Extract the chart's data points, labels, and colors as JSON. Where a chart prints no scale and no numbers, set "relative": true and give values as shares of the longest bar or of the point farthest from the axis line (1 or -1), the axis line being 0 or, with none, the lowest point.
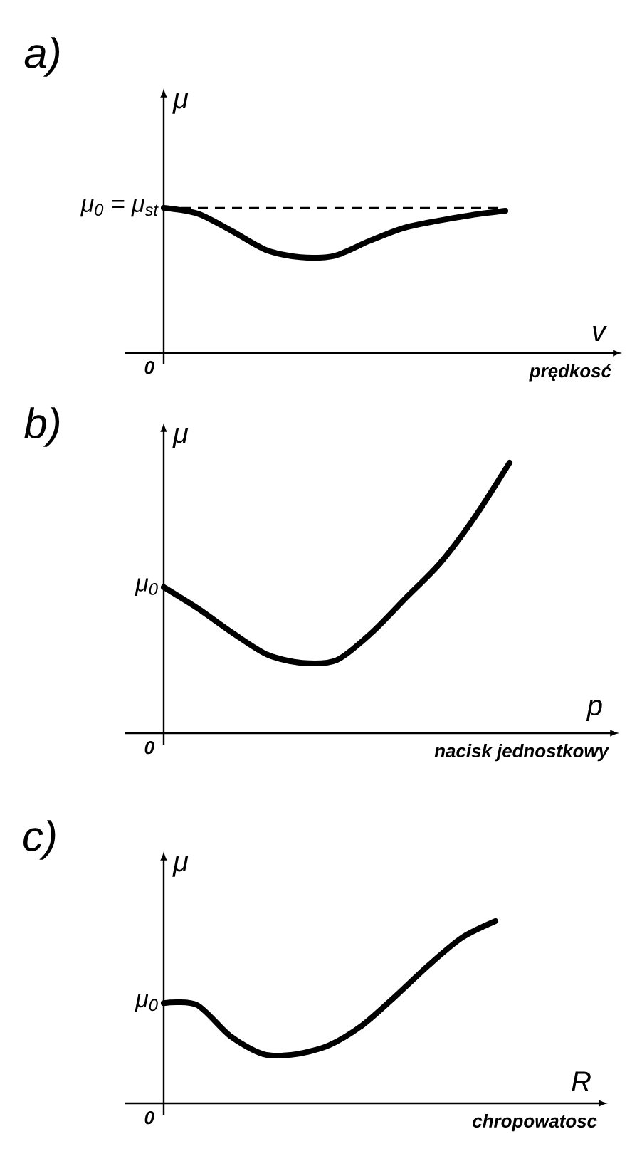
{
  "chart_data": [
    {
      "type": "line",
      "title": "a)",
      "ylabel": "μ",
      "xlabel": "v",
      "relative": true,
      "categories": [
        null,
        null,
        null,
        null,
        null,
        null,
        null,
        null,
        null,
        null,
        null
      ],
      "series": [
        {
          "color": "#000000",
          "values": [
            1.0,
            0.96,
            0.84,
            0.71,
            0.66,
            0.67,
            0.77,
            0.86,
            0.91,
            0.95,
            0.98
          ]
        }
      ],
      "ref_lines": [
        {
          "axis": "y",
          "value": 1.0,
          "label": "μ$_{0}$ = μ$_{st}$",
          "line_style": "dashed",
          "color": "#000000"
        }
      ],
      "annotations": [
        "0",
        "prędkosć"
      ]
    },
    {
      "type": "line",
      "title": "b)",
      "ylabel": "μ",
      "xlabel": "p",
      "relative": true,
      "categories": [
        null,
        null,
        null,
        null,
        null,
        null,
        null,
        null,
        null,
        null,
        null
      ],
      "series": [
        {
          "color": "#000000",
          "values": [
            0.54,
            0.46,
            0.37,
            0.29,
            0.26,
            0.27,
            0.37,
            0.5,
            0.63,
            0.8,
            1.0
          ]
        }
      ],
      "annotations": [
        "0",
        "nacisk  jednostkowy",
        "μ$_{0}$"
      ]
    },
    {
      "type": "line",
      "title": "c)",
      "ylabel": "μ",
      "xlabel": "R",
      "relative": true,
      "categories": [
        null,
        null,
        null,
        null,
        null,
        null,
        null,
        null,
        null,
        null,
        null
      ],
      "series": [
        {
          "color": "#000000",
          "values": [
            0.55,
            0.54,
            0.37,
            0.27,
            0.27,
            0.32,
            0.43,
            0.59,
            0.76,
            0.91,
            1.0
          ]
        }
      ],
      "annotations": [
        "0",
        "chropowatosc",
        "μ$_{0}$"
      ]
    }
  ]
}
